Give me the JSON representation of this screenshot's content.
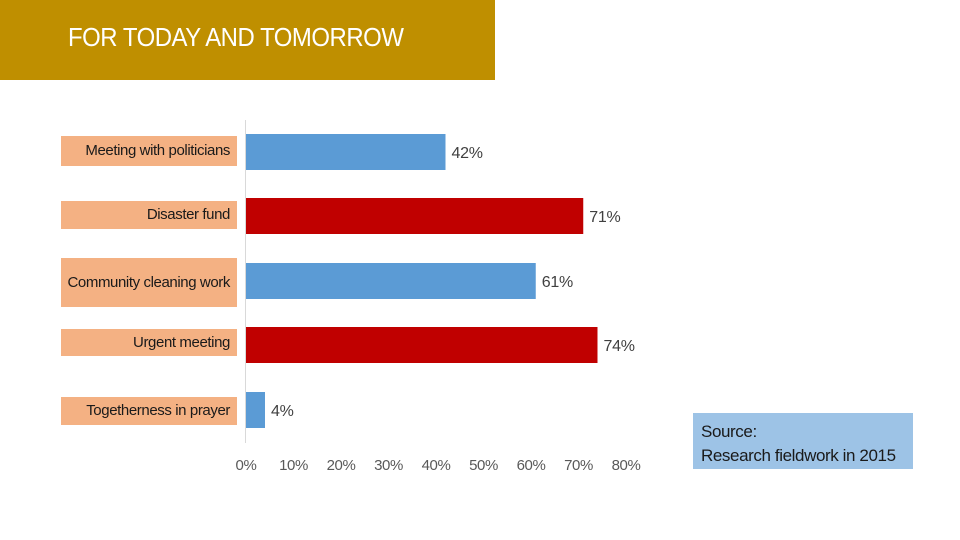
{
  "header": {
    "title": "FOR TODAY AND TOMORROW"
  },
  "chart_data": {
    "type": "bar",
    "orientation": "horizontal",
    "categories": [
      "Meeting with politicians",
      "Disaster fund",
      "Community cleaning work",
      "Urgent meeting",
      "Togetherness in prayer"
    ],
    "values": [
      42,
      71,
      61,
      74,
      4
    ],
    "data_labels": [
      "42%",
      "71%",
      "61%",
      "74%",
      "4%"
    ],
    "bar_colors": [
      "#5b9bd5",
      "#c00000",
      "#5b9bd5",
      "#c00000",
      "#5b9bd5"
    ],
    "xlim": [
      0,
      80
    ],
    "x_ticks": [
      "0%",
      "10%",
      "20%",
      "30%",
      "40%",
      "50%",
      "60%",
      "70%",
      "80%"
    ],
    "grid": false,
    "legend": "none"
  },
  "source": {
    "line1": "Source:",
    "line2": "Research fieldwork in 2015"
  },
  "colors": {
    "title_bar": "#bf8f00",
    "label_bg": "#f4b183",
    "source_bg": "#9dc3e6"
  }
}
